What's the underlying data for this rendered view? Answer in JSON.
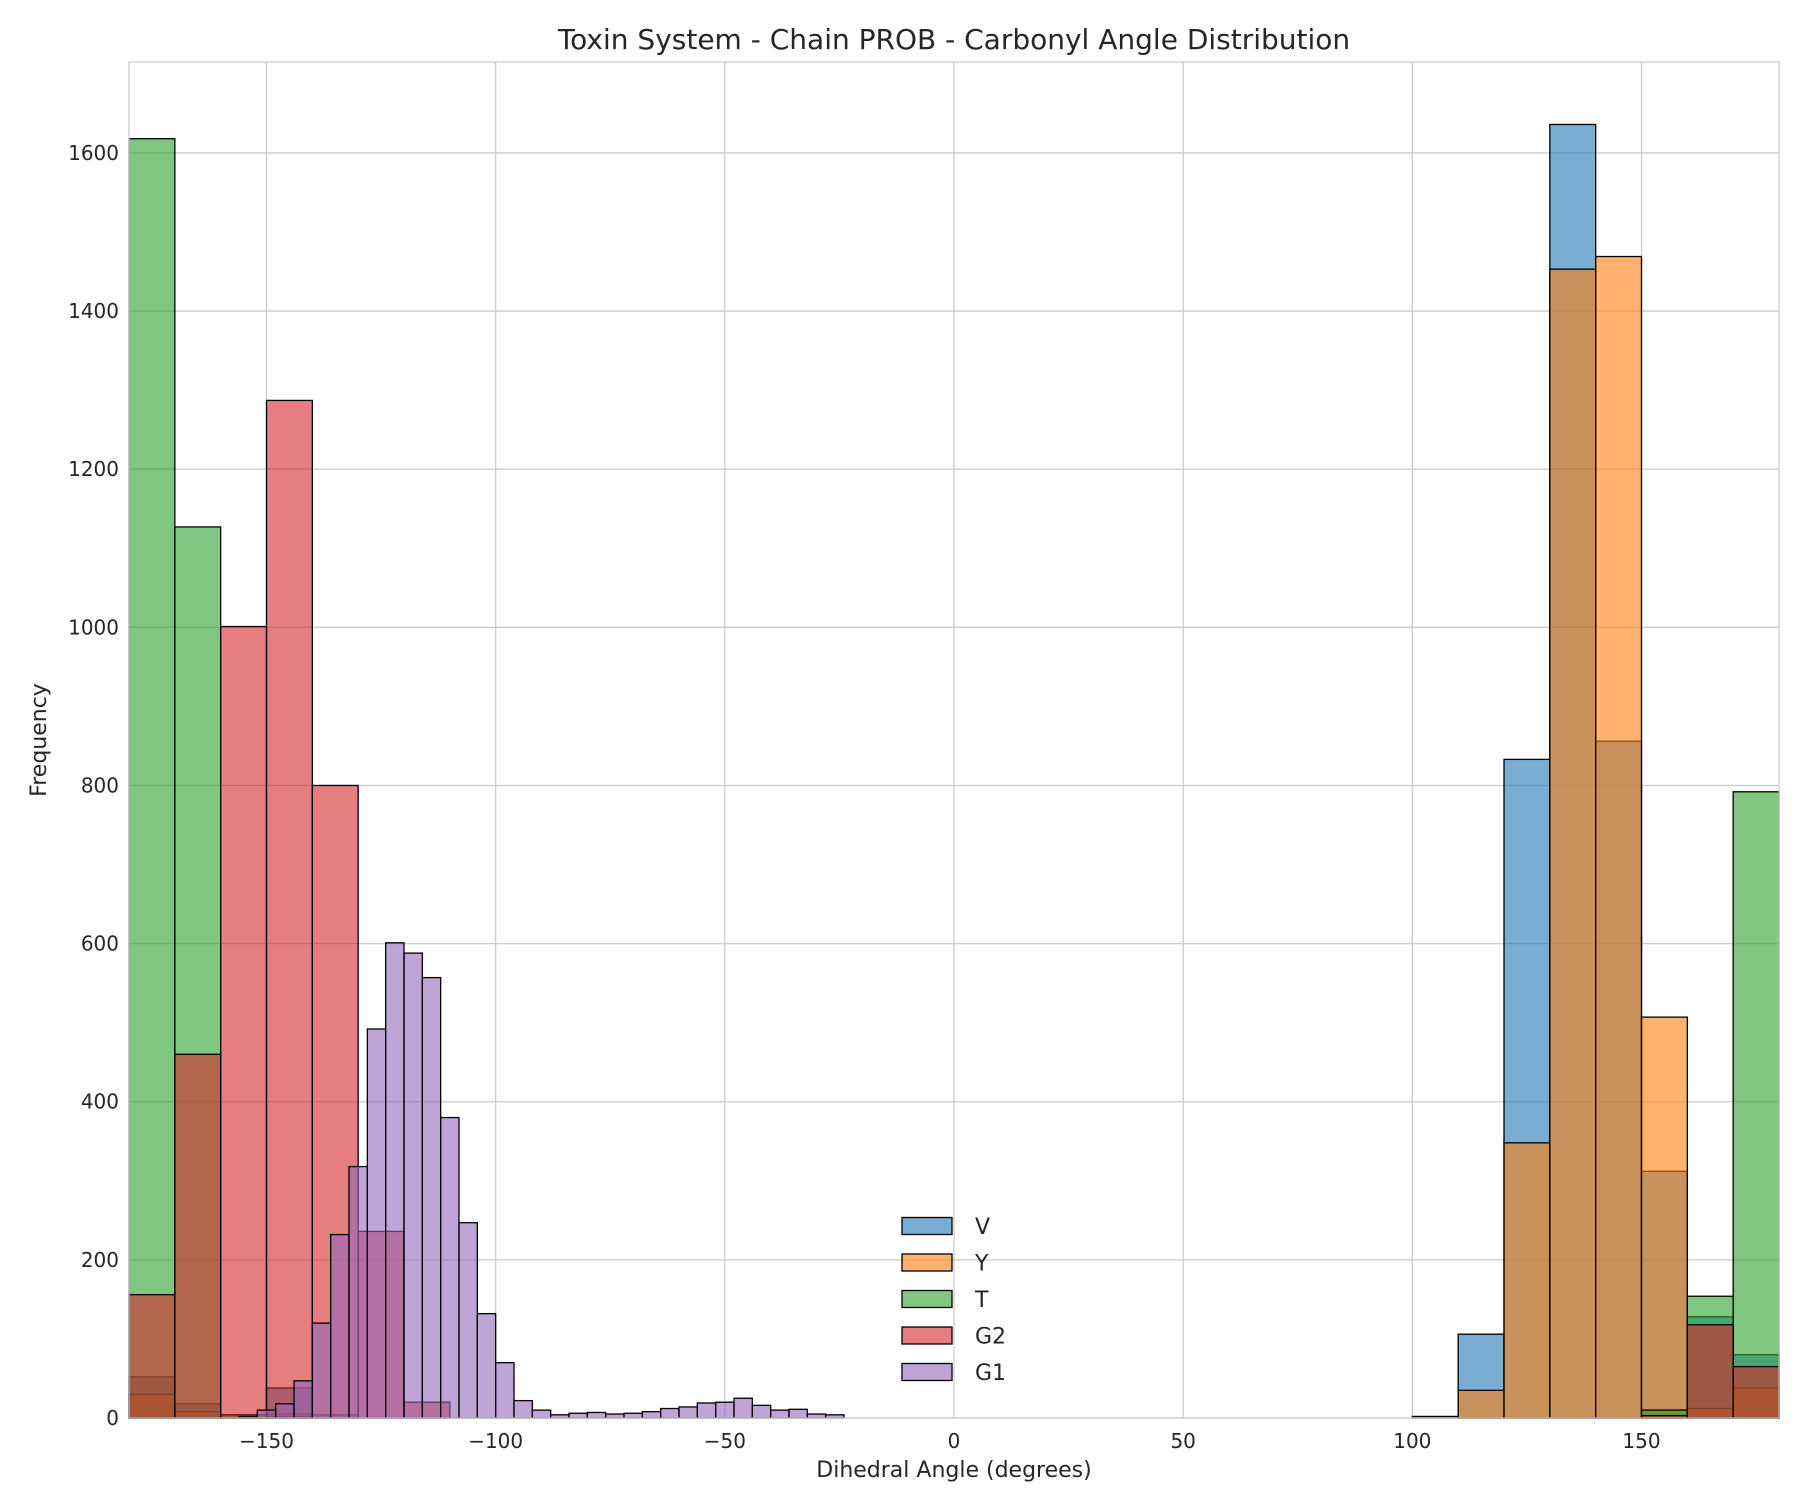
{
  "chart_data": {
    "type": "bar",
    "title": "Toxin System - Chain PROB - Carbonyl Angle Distribution",
    "xlabel": "Dihedral Angle (degrees)",
    "ylabel": "Frequency",
    "xlim": [
      -180,
      180
    ],
    "ylim": [
      0,
      1715
    ],
    "xticks": [
      -150,
      -100,
      -50,
      0,
      50,
      100,
      150
    ],
    "xtick_labels": [
      "−150",
      "−100",
      "−50",
      "0",
      "50",
      "100",
      "150"
    ],
    "yticks": [
      0,
      200,
      400,
      600,
      800,
      1000,
      1200,
      1400,
      1600
    ],
    "ytick_labels": [
      "0",
      "200",
      "400",
      "600",
      "800",
      "1000",
      "1200",
      "1400",
      "1600"
    ],
    "grid": true,
    "legend_position": "bottom-center",
    "bar_alpha": 0.6,
    "series": [
      {
        "name": "V",
        "color": "#1f77b4",
        "bins": [
          [
            -180,
            -170,
            52
          ],
          [
            -170,
            -160,
            18
          ],
          [
            -160,
            -150,
            4
          ],
          [
            -150,
            -140,
            38
          ],
          [
            -140,
            -130,
            4
          ],
          [
            100,
            110,
            2
          ],
          [
            110,
            120,
            106
          ],
          [
            120,
            130,
            833
          ],
          [
            130,
            140,
            1636
          ],
          [
            140,
            150,
            856
          ],
          [
            150,
            160,
            312
          ],
          [
            160,
            170,
            128
          ],
          [
            170,
            180,
            80
          ]
        ]
      },
      {
        "name": "Y",
        "color": "#ff7f0e",
        "bins": [
          [
            -180,
            -170,
            30
          ],
          [
            -170,
            -160,
            8
          ],
          [
            -160,
            -150,
            4
          ],
          [
            -150,
            -140,
            5
          ],
          [
            110,
            120,
            35
          ],
          [
            120,
            130,
            348
          ],
          [
            130,
            140,
            1453
          ],
          [
            140,
            150,
            1469
          ],
          [
            150,
            160,
            507
          ],
          [
            160,
            170,
            12
          ],
          [
            170,
            180,
            38
          ]
        ]
      },
      {
        "name": "T",
        "color": "#2ca02c",
        "bins": [
          [
            -180,
            -170,
            1618
          ],
          [
            -170,
            -160,
            1127
          ],
          [
            -160,
            -150,
            4
          ],
          [
            -150,
            -140,
            2
          ],
          [
            150,
            160,
            10
          ],
          [
            160,
            170,
            154
          ],
          [
            170,
            180,
            792
          ]
        ]
      },
      {
        "name": "G2",
        "color": "#d62728",
        "bins": [
          [
            -180,
            -170,
            156
          ],
          [
            -170,
            -160,
            460
          ],
          [
            -160,
            -150,
            1001
          ],
          [
            -150,
            -140,
            1287
          ],
          [
            -140,
            -130,
            800
          ],
          [
            -130,
            -120,
            236
          ],
          [
            -120,
            -110,
            20
          ],
          [
            150,
            160,
            3
          ],
          [
            160,
            170,
            118
          ],
          [
            170,
            180,
            65
          ]
        ]
      },
      {
        "name": "G1",
        "color": "#9467bd",
        "bins": [
          [
            -180,
            -176,
            0
          ],
          [
            -176,
            -172,
            0
          ],
          [
            -172,
            -168,
            0
          ],
          [
            -168,
            -164,
            0
          ],
          [
            -164,
            -160,
            0
          ],
          [
            -160,
            -156,
            0
          ],
          [
            -156,
            -152,
            2
          ],
          [
            -152,
            -148,
            10
          ],
          [
            -148,
            -144,
            18
          ],
          [
            -144,
            -140,
            47
          ],
          [
            -140,
            -136,
            120
          ],
          [
            -136,
            -132,
            232
          ],
          [
            -132,
            -128,
            318
          ],
          [
            -128,
            -124,
            492
          ],
          [
            -124,
            -120,
            601
          ],
          [
            -120,
            -116,
            588
          ],
          [
            -116,
            -112,
            557
          ],
          [
            -112,
            -108,
            380
          ],
          [
            -108,
            -104,
            247
          ],
          [
            -104,
            -100,
            132
          ],
          [
            -100,
            -96,
            70
          ],
          [
            -96,
            -92,
            22
          ],
          [
            -92,
            -88,
            10
          ],
          [
            -88,
            -84,
            4
          ],
          [
            -84,
            -80,
            6
          ],
          [
            -80,
            -76,
            7
          ],
          [
            -76,
            -72,
            5
          ],
          [
            -72,
            -68,
            6
          ],
          [
            -68,
            -64,
            8
          ],
          [
            -64,
            -60,
            12
          ],
          [
            -60,
            -56,
            14
          ],
          [
            -56,
            -52,
            19
          ],
          [
            -52,
            -48,
            20
          ],
          [
            -48,
            -44,
            25
          ],
          [
            -44,
            -40,
            16
          ],
          [
            -40,
            -36,
            10
          ],
          [
            -36,
            -32,
            11
          ],
          [
            -32,
            -28,
            5
          ],
          [
            -28,
            -24,
            4
          ]
        ]
      }
    ]
  }
}
